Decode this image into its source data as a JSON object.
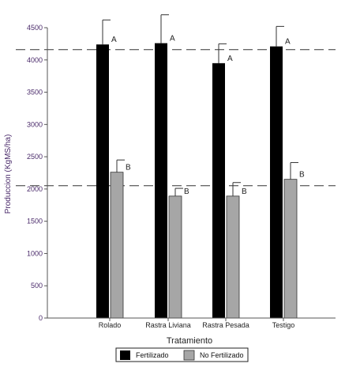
{
  "chart_data": {
    "type": "bar",
    "title": "",
    "xlabel": "Tratamiento",
    "ylabel": "Produccion (KgMS/ha)",
    "ylim": [
      0,
      4500
    ],
    "yticks": [
      0,
      500,
      1000,
      1500,
      2000,
      2500,
      3000,
      3500,
      4000,
      4500
    ],
    "categories": [
      "Rolado",
      "Rastra Liviana",
      "Rastra Pesada",
      "Testigo"
    ],
    "series": [
      {
        "name": "Fertilizado",
        "color": "#000000",
        "values": [
          4240,
          4260,
          3950,
          4210
        ],
        "errors": [
          380,
          440,
          300,
          310
        ],
        "letters": [
          "A",
          "A",
          "A",
          "A"
        ]
      },
      {
        "name": "No Fertilizado",
        "color": "#a6a6a6",
        "values": [
          2260,
          1890,
          1890,
          2150
        ],
        "errors": [
          190,
          120,
          210,
          260
        ],
        "letters": [
          "B",
          "B",
          "B",
          "B"
        ]
      }
    ],
    "reference_lines": [
      4160,
      2050
    ],
    "grid": false,
    "legend": "bottom",
    "error_bars": true
  }
}
